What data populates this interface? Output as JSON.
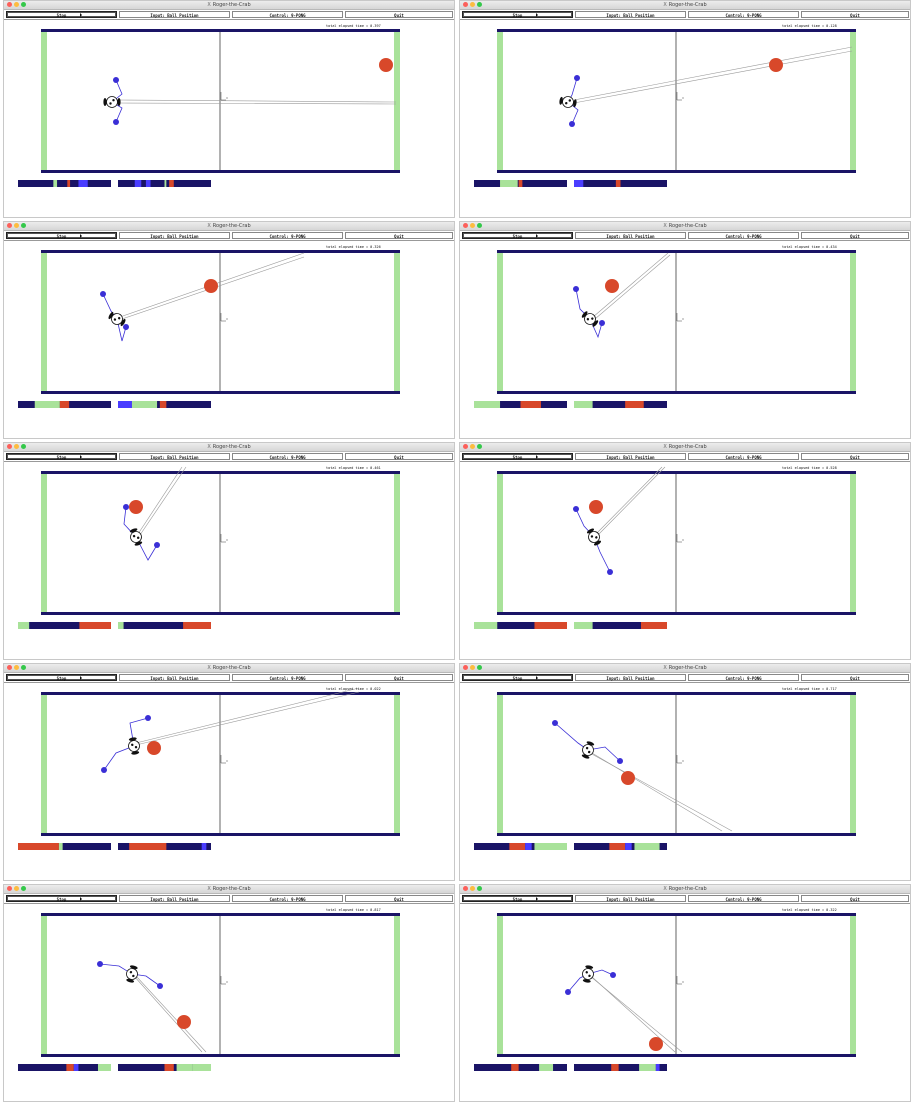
{
  "window_title": "Roger-the-Crab",
  "x_glyph": "X",
  "buttons": {
    "stop": "Stop",
    "input": "Input: Ball Position",
    "control": "Control: 9-PONG",
    "quit": "Quit"
  },
  "elapsed_label": "total elapsed time =",
  "colors": {
    "wall": "#a9e29a",
    "frame": "#1a1466",
    "ball": "#d8482a",
    "arm": "#3a2fd6",
    "bar_bg": "#1a1466",
    "bar_red": "#d8482a",
    "bar_green": "#a9e29a",
    "bar_blue": "#4a3dff"
  },
  "frames": [
    {
      "elapsed": "0.397"
    },
    {
      "elapsed": "0.128"
    },
    {
      "elapsed": "0.326"
    },
    {
      "elapsed": "0.434"
    },
    {
      "elapsed": "0.461"
    },
    {
      "elapsed": "0.528"
    },
    {
      "elapsed": "0.022"
    },
    {
      "elapsed": "0.717"
    },
    {
      "elapsed": "0.817"
    },
    {
      "elapsed": "0.322"
    }
  ]
}
